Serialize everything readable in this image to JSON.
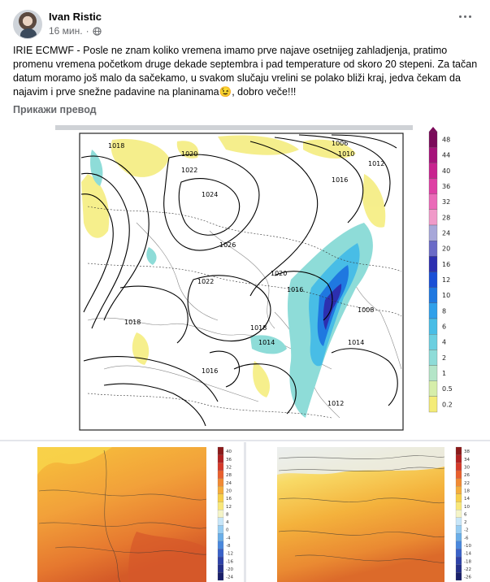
{
  "post": {
    "author": "Ivan Ristic",
    "time": "16 мин.",
    "text": "IRIE ECMWF - Posle ne znam koliko vremena imamo prve najave osetnijeg zahladjenja, pratimo promenu vremena početkom druge dekade septembra i pad temperature od skoro 20 stepeni. Za tačan datum moramo još malo da sačekamo, u svakom slučaju vrelini se polako bliži kraj, jedva čekam da najavim i prve snežne padavine na planinama😉, dobro veče!!!",
    "translate_label": "Прикажи превод"
  },
  "icons": {
    "privacy": "globe-icon",
    "more": "more-options-icon"
  },
  "precip_map": {
    "scale_labels": [
      "48",
      "44",
      "40",
      "36",
      "32",
      "28",
      "24",
      "20",
      "16",
      "12",
      "10",
      "8",
      "6",
      "4",
      "2",
      "1",
      "0.5",
      "0.2"
    ],
    "scale_colors": [
      "#7b0a5a",
      "#a6127a",
      "#c8238f",
      "#de3fa4",
      "#ea6ab8",
      "#f09ac9",
      "#a7a7d9",
      "#6b6bc7",
      "#2c2fb0",
      "#1a4fd6",
      "#1f78e0",
      "#2fa0ea",
      "#48bde6",
      "#6bcfe0",
      "#8edcd8",
      "#b4e5c8",
      "#d6eeaa",
      "#f4ec78"
    ],
    "isobar_labels": [
      "1018",
      "1020",
      "1022",
      "1024",
      "1026",
      "1012",
      "1016",
      "1014",
      "1008",
      "1006",
      "1010",
      "1020",
      "1016",
      "1018",
      "1014",
      "1012",
      "1016",
      "1018",
      "1022"
    ]
  },
  "temp_map_left": {
    "scale_labels": [
      "40",
      "36",
      "32",
      "28",
      "24",
      "20",
      "16",
      "12",
      "8",
      "4",
      "0",
      "-4",
      "-8",
      "-12",
      "-16",
      "-20",
      "-24"
    ]
  },
  "temp_map_right": {
    "scale_labels": [
      "38",
      "34",
      "30",
      "26",
      "22",
      "18",
      "14",
      "10",
      "6",
      "2",
      "-2",
      "-6",
      "-10",
      "-14",
      "-18",
      "-22",
      "-26"
    ]
  }
}
